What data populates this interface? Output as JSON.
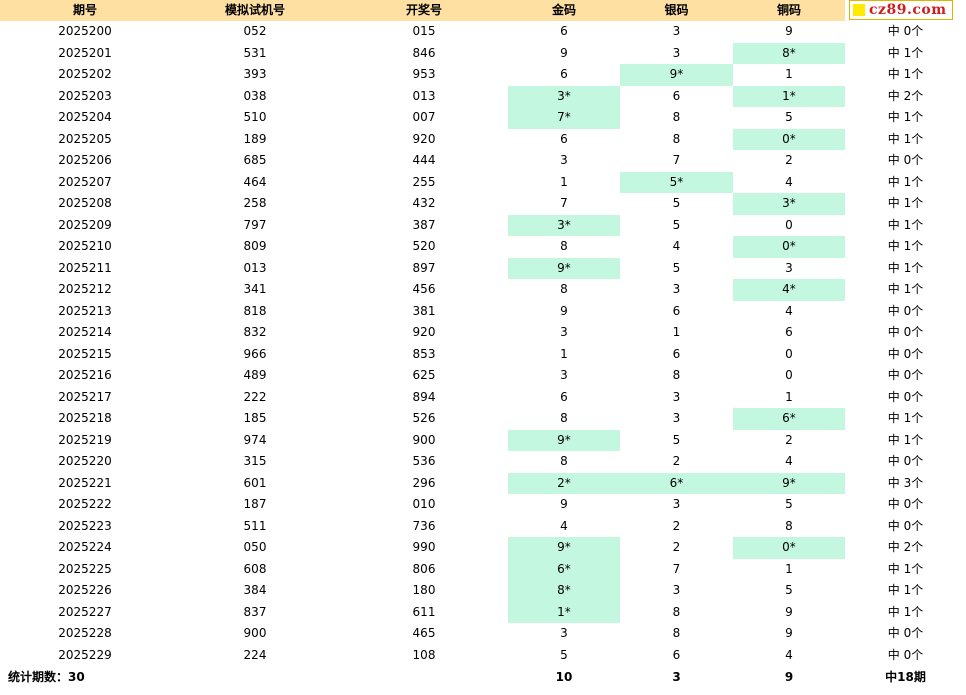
{
  "headers": [
    "期号",
    "模拟试机号",
    "开奖号",
    "金码",
    "银码",
    "铜码"
  ],
  "logo_text": "cz89.com",
  "colors": {
    "header_bg": "#ffe0a3",
    "hit_bg": "#c4f7e0",
    "logo_text": "#cc1f1f"
  },
  "rows": [
    {
      "period": "2025200",
      "trial": "052",
      "draw": "015",
      "gold": "6",
      "silver": "3",
      "bronze": "9",
      "result": "中 0个",
      "hits": [
        false,
        false,
        false
      ]
    },
    {
      "period": "2025201",
      "trial": "531",
      "draw": "846",
      "gold": "9",
      "silver": "3",
      "bronze": "8*",
      "result": "中 1个",
      "hits": [
        false,
        false,
        true
      ]
    },
    {
      "period": "2025202",
      "trial": "393",
      "draw": "953",
      "gold": "6",
      "silver": "9*",
      "bronze": "1",
      "result": "中 1个",
      "hits": [
        false,
        true,
        false
      ]
    },
    {
      "period": "2025203",
      "trial": "038",
      "draw": "013",
      "gold": "3*",
      "silver": "6",
      "bronze": "1*",
      "result": "中 2个",
      "hits": [
        true,
        false,
        true
      ]
    },
    {
      "period": "2025204",
      "trial": "510",
      "draw": "007",
      "gold": "7*",
      "silver": "8",
      "bronze": "5",
      "result": "中 1个",
      "hits": [
        true,
        false,
        false
      ]
    },
    {
      "period": "2025205",
      "trial": "189",
      "draw": "920",
      "gold": "6",
      "silver": "8",
      "bronze": "0*",
      "result": "中 1个",
      "hits": [
        false,
        false,
        true
      ]
    },
    {
      "period": "2025206",
      "trial": "685",
      "draw": "444",
      "gold": "3",
      "silver": "7",
      "bronze": "2",
      "result": "中 0个",
      "hits": [
        false,
        false,
        false
      ]
    },
    {
      "period": "2025207",
      "trial": "464",
      "draw": "255",
      "gold": "1",
      "silver": "5*",
      "bronze": "4",
      "result": "中 1个",
      "hits": [
        false,
        true,
        false
      ]
    },
    {
      "period": "2025208",
      "trial": "258",
      "draw": "432",
      "gold": "7",
      "silver": "5",
      "bronze": "3*",
      "result": "中 1个",
      "hits": [
        false,
        false,
        true
      ]
    },
    {
      "period": "2025209",
      "trial": "797",
      "draw": "387",
      "gold": "3*",
      "silver": "5",
      "bronze": "0",
      "result": "中 1个",
      "hits": [
        true,
        false,
        false
      ]
    },
    {
      "period": "2025210",
      "trial": "809",
      "draw": "520",
      "gold": "8",
      "silver": "4",
      "bronze": "0*",
      "result": "中 1个",
      "hits": [
        false,
        false,
        true
      ]
    },
    {
      "period": "2025211",
      "trial": "013",
      "draw": "897",
      "gold": "9*",
      "silver": "5",
      "bronze": "3",
      "result": "中 1个",
      "hits": [
        true,
        false,
        false
      ]
    },
    {
      "period": "2025212",
      "trial": "341",
      "draw": "456",
      "gold": "8",
      "silver": "3",
      "bronze": "4*",
      "result": "中 1个",
      "hits": [
        false,
        false,
        true
      ]
    },
    {
      "period": "2025213",
      "trial": "818",
      "draw": "381",
      "gold": "9",
      "silver": "6",
      "bronze": "4",
      "result": "中 0个",
      "hits": [
        false,
        false,
        false
      ]
    },
    {
      "period": "2025214",
      "trial": "832",
      "draw": "920",
      "gold": "3",
      "silver": "1",
      "bronze": "6",
      "result": "中 0个",
      "hits": [
        false,
        false,
        false
      ]
    },
    {
      "period": "2025215",
      "trial": "966",
      "draw": "853",
      "gold": "1",
      "silver": "6",
      "bronze": "0",
      "result": "中 0个",
      "hits": [
        false,
        false,
        false
      ]
    },
    {
      "period": "2025216",
      "trial": "489",
      "draw": "625",
      "gold": "3",
      "silver": "8",
      "bronze": "0",
      "result": "中 0个",
      "hits": [
        false,
        false,
        false
      ]
    },
    {
      "period": "2025217",
      "trial": "222",
      "draw": "894",
      "gold": "6",
      "silver": "3",
      "bronze": "1",
      "result": "中 0个",
      "hits": [
        false,
        false,
        false
      ]
    },
    {
      "period": "2025218",
      "trial": "185",
      "draw": "526",
      "gold": "8",
      "silver": "3",
      "bronze": "6*",
      "result": "中 1个",
      "hits": [
        false,
        false,
        true
      ]
    },
    {
      "period": "2025219",
      "trial": "974",
      "draw": "900",
      "gold": "9*",
      "silver": "5",
      "bronze": "2",
      "result": "中 1个",
      "hits": [
        true,
        false,
        false
      ]
    },
    {
      "period": "2025220",
      "trial": "315",
      "draw": "536",
      "gold": "8",
      "silver": "2",
      "bronze": "4",
      "result": "中 0个",
      "hits": [
        false,
        false,
        false
      ]
    },
    {
      "period": "2025221",
      "trial": "601",
      "draw": "296",
      "gold": "2*",
      "silver": "6*",
      "bronze": "9*",
      "result": "中 3个",
      "hits": [
        true,
        true,
        true
      ]
    },
    {
      "period": "2025222",
      "trial": "187",
      "draw": "010",
      "gold": "9",
      "silver": "3",
      "bronze": "5",
      "result": "中 0个",
      "hits": [
        false,
        false,
        false
      ]
    },
    {
      "period": "2025223",
      "trial": "511",
      "draw": "736",
      "gold": "4",
      "silver": "2",
      "bronze": "8",
      "result": "中 0个",
      "hits": [
        false,
        false,
        false
      ]
    },
    {
      "period": "2025224",
      "trial": "050",
      "draw": "990",
      "gold": "9*",
      "silver": "2",
      "bronze": "0*",
      "result": "中 2个",
      "hits": [
        true,
        false,
        true
      ]
    },
    {
      "period": "2025225",
      "trial": "608",
      "draw": "806",
      "gold": "6*",
      "silver": "7",
      "bronze": "1",
      "result": "中 1个",
      "hits": [
        true,
        false,
        false
      ]
    },
    {
      "period": "2025226",
      "trial": "384",
      "draw": "180",
      "gold": "8*",
      "silver": "3",
      "bronze": "5",
      "result": "中 1个",
      "hits": [
        true,
        false,
        false
      ]
    },
    {
      "period": "2025227",
      "trial": "837",
      "draw": "611",
      "gold": "1*",
      "silver": "8",
      "bronze": "9",
      "result": "中 1个",
      "hits": [
        true,
        false,
        false
      ]
    },
    {
      "period": "2025228",
      "trial": "900",
      "draw": "465",
      "gold": "3",
      "silver": "8",
      "bronze": "9",
      "result": "中 0个",
      "hits": [
        false,
        false,
        false
      ]
    },
    {
      "period": "2025229",
      "trial": "224",
      "draw": "108",
      "gold": "5",
      "silver": "6",
      "bronze": "4",
      "result": "中 0个",
      "hits": [
        false,
        false,
        false
      ]
    }
  ],
  "footer": {
    "label": "统计期数：30",
    "gold_total": "10",
    "silver_total": "3",
    "bronze_total": "9",
    "result_total": "中18期"
  }
}
